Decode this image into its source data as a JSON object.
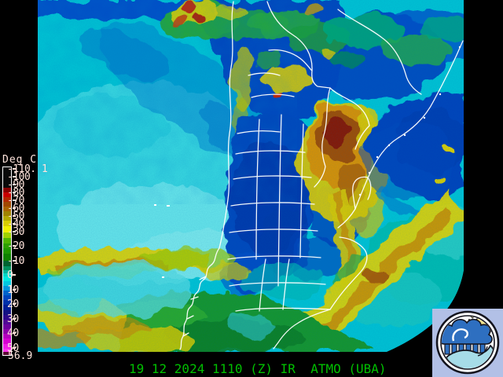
{
  "scale": {
    "title": "Deg C",
    "labels": [
      "-110. 1",
      "-100",
      "-90",
      "-80",
      "-70",
      "-60",
      "-50",
      "-40",
      "-30",
      "-20",
      "-10",
      "0",
      "10",
      "20",
      "30",
      "40",
      "50"
    ],
    "max_label": "56.9",
    "label_color": "#ffe4dc",
    "gradient_stops": [
      [
        0,
        "#0a0a0a"
      ],
      [
        26,
        "#8a0000"
      ],
      [
        32,
        "#c80000"
      ],
      [
        38,
        "#b42800"
      ],
      [
        44,
        "#a04800"
      ],
      [
        50,
        "#aa6400"
      ],
      [
        56,
        "#a08200"
      ],
      [
        62,
        "#b4a800"
      ],
      [
        68,
        "#d8cc00"
      ],
      [
        75,
        "#f0ee00"
      ],
      [
        83,
        "#a0d200"
      ],
      [
        90,
        "#50b400"
      ],
      [
        97,
        "#2da000"
      ],
      [
        103,
        "#1e9600"
      ],
      [
        110,
        "#0f8200"
      ],
      [
        119,
        "#006432"
      ],
      [
        126,
        "#00915f"
      ],
      [
        131,
        "#00b49b"
      ],
      [
        135,
        "#00d8c8"
      ],
      [
        139,
        "#00e8e0"
      ],
      [
        145,
        "#00c8e0"
      ],
      [
        151,
        "#0096dc"
      ],
      [
        157,
        "#0064cc"
      ],
      [
        163,
        "#0046be"
      ],
      [
        169,
        "#0032aa"
      ],
      [
        175,
        "#001e96"
      ],
      [
        182,
        "#141484"
      ],
      [
        188,
        "#2d0a8c"
      ],
      [
        194,
        "#500a96"
      ],
      [
        200,
        "#6e00a0"
      ],
      [
        206,
        "#8c00aa"
      ],
      [
        212,
        "#b400be"
      ],
      [
        218,
        "#d800d2"
      ],
      [
        225,
        "#f01ee6"
      ],
      [
        231,
        "#ff32f0"
      ],
      [
        235,
        "#5a0a32"
      ],
      [
        239,
        "#5a0a32"
      ]
    ]
  },
  "footer": {
    "timestamp": "19 12 2024 1110 (Z) IR  ATMO (UBA)",
    "color": "#00c000"
  },
  "logo": {
    "name": "atmo-uba-meteorology-logo",
    "bg_color": "#b2c0e6"
  },
  "colors": {
    "background": "#000000",
    "base_cloud_cyan": "#00c4d4",
    "cold_core_red": "#8a1500",
    "border_white": "#ffffff"
  }
}
